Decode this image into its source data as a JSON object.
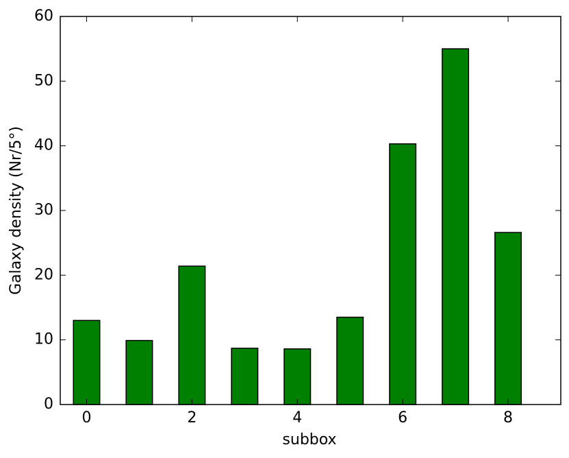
{
  "chart_data": {
    "type": "bar",
    "x": [
      0,
      1,
      2,
      3,
      4,
      5,
      6,
      7,
      8
    ],
    "values": [
      13.0,
      9.9,
      21.4,
      8.7,
      8.6,
      13.5,
      40.3,
      55.0,
      26.6
    ],
    "color": "#008000",
    "edgecolor": "#000000",
    "xlabel": "subbox",
    "ylabel": "Galaxy density (Nr/5°)",
    "xlim": [
      -0.5,
      9
    ],
    "xticks": [
      0,
      2,
      4,
      6,
      8
    ],
    "ylim": [
      0,
      60
    ],
    "yticks": [
      0,
      10,
      20,
      30,
      40,
      50,
      60
    ],
    "grid": false
  }
}
